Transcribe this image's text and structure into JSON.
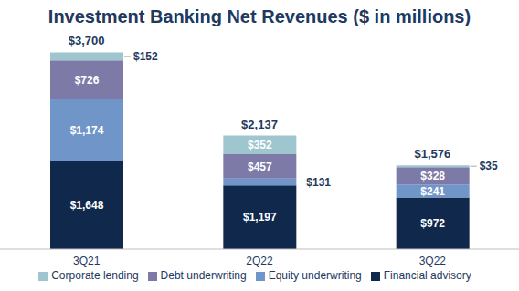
{
  "chart_data": {
    "type": "bar",
    "title": "Investment Banking Net Revenues ($ in millions)",
    "categories": [
      "3Q21",
      "2Q22",
      "3Q22"
    ],
    "series": [
      {
        "name": "Financial advisory",
        "color": "#10284b",
        "values": [
          1648,
          1197,
          972
        ],
        "value_labels": [
          "$1,648",
          "$1,197",
          "$972"
        ]
      },
      {
        "name": "Equity underwriting",
        "color": "#6f95c9",
        "values": [
          1174,
          131,
          241
        ],
        "value_labels": [
          "$1,174",
          "$131",
          "$241"
        ]
      },
      {
        "name": "Debt underwriting",
        "color": "#7d7aa8",
        "values": [
          726,
          457,
          328
        ],
        "value_labels": [
          "$726",
          "$457",
          "$328"
        ]
      },
      {
        "name": "Corporate lending",
        "color": "#9fc5cf",
        "values": [
          152,
          352,
          35
        ],
        "value_labels": [
          "$152",
          "$352",
          "$35"
        ]
      }
    ],
    "totals": [
      3700,
      2137,
      1576
    ],
    "total_labels": [
      "$3,700",
      "$2,137",
      "$1,576"
    ],
    "ylim": [
      0,
      4000
    ],
    "stacked": true,
    "data_labels": true,
    "tick_labels": "x",
    "legend": "bottom",
    "grid": false
  }
}
